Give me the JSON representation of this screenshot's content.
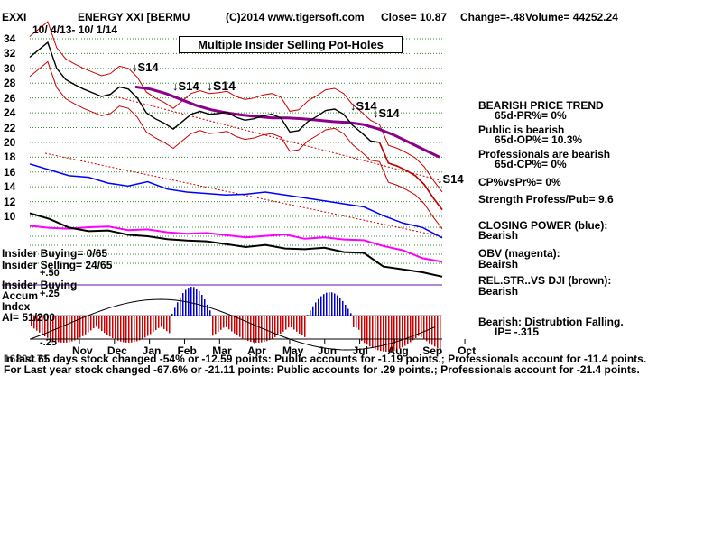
{
  "header": {
    "symbol": "EXXI",
    "name": "ENERGY XXI [BERMU",
    "copyright": "(C)2014 www.tigersoft.com",
    "close": "Close=  10.87",
    "change": "Change=-.48",
    "volume": "Volume= 44252.24",
    "daterange": "10/ 4/13- 10/ 1/14"
  },
  "banner": "Multiple Insider Selling Pot-Holes",
  "signals": [
    "S14",
    "S14",
    "S14",
    "S14",
    "S14",
    "S14"
  ],
  "right_panel": {
    "l1": "BEARISH PRICE TREND",
    "l2": "65d-PR%= 0%",
    "l3": "Public is bearish",
    "l4": "65d-OP%= 10.3%",
    "l5": "Professionals are bearish",
    "l6": "65d-CP%= 0%",
    "l7": "CP%vsPr%=  0%",
    "l8": "Strength Profess/Pub= 9.6",
    "l9": "CLOSING POWER (blue):",
    "l10": "Bearish",
    "l11": "OBV (magenta):",
    "l12": "Beairsh",
    "l13": "REL.STR..VS DJI (brown):",
    "l14": "Bearish",
    "l15": "Bearish: Distrubtion Falling.",
    "l16": "IP= -.315"
  },
  "left_panel": {
    "buying": "Insider Buying= 0/65",
    "selling": "Insider Selling= 24/65",
    "plus50": "+.50",
    "ib1": "Insider Buying",
    "ib2": "Accum",
    "plus25": "+.25",
    "ib3": "Index",
    "ai": "AI= 51/200",
    "minus25": "-.25",
    "overlap": "16804.71"
  },
  "footer": {
    "line1": "In last 65 days stock changed -54% or -12.59 points:  Public accounts for -1.19 points.;  Professionals account for -11.4 points.",
    "line2": "For Last year stock changed -67.6% or -21.11 points:  Public accounts for  .29 points.;  Professionals account for -21.4 points."
  },
  "chart_data": {
    "type": "line",
    "y_ticks": [
      34,
      32,
      30,
      28,
      26,
      24,
      22,
      20,
      18,
      16,
      14,
      12,
      10
    ],
    "ylim": [
      10,
      34
    ],
    "x_months": [
      "Nov",
      "Dec",
      "Jan",
      "Feb",
      "Mar",
      "Apr",
      "May",
      "Jun",
      "Jul",
      "Aug",
      "Sep",
      "Oct"
    ],
    "grid": "horizontal dotted",
    "price_close": [
      31.5,
      32.5,
      33.5,
      30,
      28.5,
      27.8,
      27.2,
      26.7,
      26.2,
      26.5,
      27.5,
      27.2,
      26,
      24,
      23.2,
      22.6,
      21.8,
      22.8,
      23.8,
      24.2,
      23.8,
      23.9,
      24.1,
      23.4,
      23,
      23.2,
      23.6,
      23.8,
      23.3,
      21.4,
      21.6,
      22.8,
      23.5,
      24.3,
      24.5,
      23.8,
      22.3,
      21.3,
      20.2,
      20,
      17.2,
      16.8,
      16.2,
      15.5,
      14.3,
      12.5,
      10.9
    ],
    "moving_average": [
      27.5,
      27.2,
      26.6,
      25.8,
      25,
      24.4,
      24,
      23.7,
      23.5,
      23.3,
      23.3,
      23.2,
      23,
      22.8,
      22.7,
      22.4,
      21.8,
      21,
      20,
      19,
      18
    ]
  }
}
